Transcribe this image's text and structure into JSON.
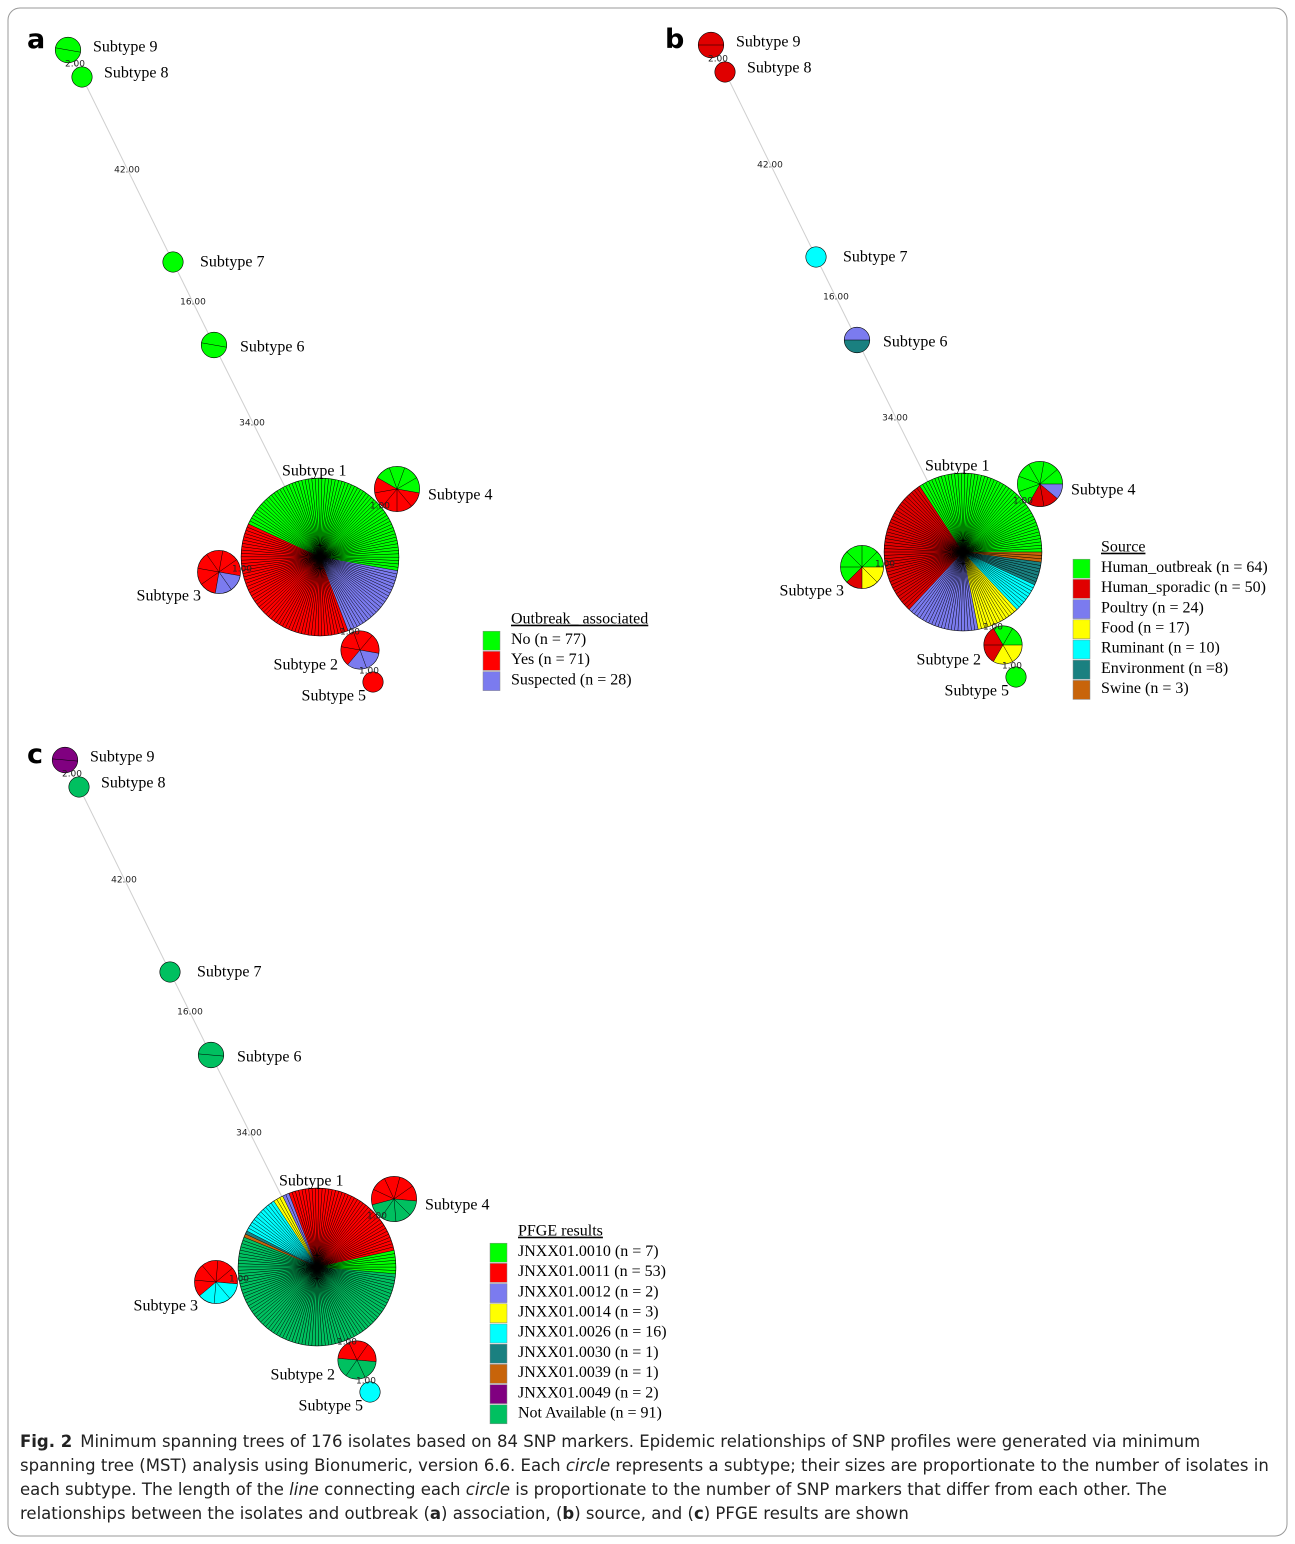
{
  "panels": [
    {
      "label": "a",
      "legend": {
        "title": "Outbreak_ associated",
        "entries": [
          {
            "label": "No (n = 77)",
            "color": "#00ff00"
          },
          {
            "label": "Yes (n = 71)",
            "color": "#ff0000"
          },
          {
            "label": "Suspected (n = 28)",
            "color": "#7b7bef"
          }
        ]
      },
      "nodes": [
        {
          "label": "Subtype 9",
          "composition": [
            2,
            0,
            0
          ]
        },
        {
          "label": "Subtype 8",
          "composition": [
            1,
            0,
            0
          ]
        },
        {
          "label": "Subtype 7",
          "composition": [
            1,
            0,
            0
          ]
        },
        {
          "label": "Subtype 6",
          "composition": [
            2,
            0,
            0
          ]
        },
        {
          "label": "Subtype 1",
          "composition": [
            67,
            55,
            24
          ]
        },
        {
          "label": "Subtype 4",
          "composition": [
            4,
            5,
            0
          ]
        },
        {
          "label": "Subtype 3",
          "composition": [
            0,
            6,
            2
          ]
        },
        {
          "label": "Subtype 2",
          "composition": [
            0,
            4,
            2
          ]
        },
        {
          "label": "Subtype 5",
          "composition": [
            0,
            1,
            0
          ]
        }
      ],
      "edges": [
        {
          "label": "2.00"
        },
        {
          "label": "42.00"
        },
        {
          "label": "16.00"
        },
        {
          "label": "34.00"
        },
        {
          "label": "1.00"
        },
        {
          "label": "1.00"
        },
        {
          "label": "1.00"
        },
        {
          "label": "1.00"
        }
      ]
    },
    {
      "label": "b",
      "legend": {
        "title": "Source",
        "entries": [
          {
            "label": "Human_outbreak (n = 64)",
            "color": "#00ff00"
          },
          {
            "label": "Human_sporadic (n = 50)",
            "color": "#e00000"
          },
          {
            "label": "Poultry (n = 24)",
            "color": "#7b7bef"
          },
          {
            "label": "Food (n = 17)",
            "color": "#ffff00"
          },
          {
            "label": "Ruminant (n = 10)",
            "color": "#00ffff"
          },
          {
            "label": "Environment (n =8)",
            "color": "#1a8080"
          },
          {
            "label": "Swine (n = 3)",
            "color": "#c8640a"
          }
        ]
      },
      "nodes": [
        {
          "label": "Subtype 9",
          "composition": [
            0,
            2,
            0,
            0,
            0,
            0,
            0
          ]
        },
        {
          "label": "Subtype 8",
          "composition": [
            0,
            1,
            0,
            0,
            0,
            0,
            0
          ]
        },
        {
          "label": "Subtype 7",
          "composition": [
            0,
            0,
            0,
            0,
            1,
            0,
            0
          ]
        },
        {
          "label": "Subtype 6",
          "composition": [
            0,
            0,
            1,
            0,
            0,
            1,
            0
          ]
        },
        {
          "label": "Subtype 1",
          "composition": [
            50,
            42,
            22,
            13,
            9,
            7,
            3
          ]
        },
        {
          "label": "Subtype 4",
          "composition": [
            6,
            2,
            1,
            0,
            0,
            0,
            0
          ]
        },
        {
          "label": "Subtype 3",
          "composition": [
            5,
            1,
            0,
            2,
            0,
            0,
            0
          ]
        },
        {
          "label": "Subtype 2",
          "composition": [
            2,
            2,
            0,
            2,
            0,
            0,
            0
          ]
        },
        {
          "label": "Subtype 5",
          "composition": [
            1,
            0,
            0,
            0,
            0,
            0,
            0
          ]
        }
      ],
      "edges": [
        {
          "label": "2.00"
        },
        {
          "label": "42.00"
        },
        {
          "label": "16.00"
        },
        {
          "label": "34.00"
        },
        {
          "label": "1.00"
        },
        {
          "label": "1.00"
        },
        {
          "label": "1.00"
        },
        {
          "label": "1.00"
        }
      ]
    },
    {
      "label": "c",
      "legend": {
        "title": "PFGE results",
        "entries": [
          {
            "label": "JNXX01.0010 (n = 7)",
            "color": "#00ff00"
          },
          {
            "label": "JNXX01.0011 (n = 53)",
            "color": "#ff0000"
          },
          {
            "label": "JNXX01.0012 (n = 2)",
            "color": "#7b7bef"
          },
          {
            "label": "JNXX01.0014 (n = 3)",
            "color": "#ffff00"
          },
          {
            "label": "JNXX01.0026 (n = 16)",
            "color": "#00ffff"
          },
          {
            "label": "JNXX01.0030 (n = 1)",
            "color": "#1a8080"
          },
          {
            "label": "JNXX01.0039 (n = 1)",
            "color": "#c8640a"
          },
          {
            "label": "JNXX01.0049 (n = 2)",
            "color": "#800080"
          },
          {
            "label": "Not Available (n = 91)",
            "color": "#00c060"
          }
        ]
      },
      "nodes": [
        {
          "label": "Subtype 9",
          "composition": [
            0,
            0,
            0,
            0,
            0,
            0,
            0,
            2,
            0
          ]
        },
        {
          "label": "Subtype 8",
          "composition": [
            0,
            0,
            0,
            0,
            0,
            0,
            0,
            0,
            1
          ]
        },
        {
          "label": "Subtype 7",
          "composition": [
            0,
            0,
            0,
            0,
            0,
            0,
            0,
            0,
            1
          ]
        },
        {
          "label": "Subtype 6",
          "composition": [
            0,
            0,
            0,
            0,
            0,
            0,
            0,
            0,
            2
          ]
        },
        {
          "label": "Subtype 1",
          "composition": [
            7,
            40,
            2,
            3,
            12,
            1,
            1,
            0,
            80
          ]
        },
        {
          "label": "Subtype 4",
          "composition": [
            0,
            5,
            0,
            0,
            0,
            0,
            0,
            0,
            4
          ]
        },
        {
          "label": "Subtype 3",
          "composition": [
            0,
            5,
            0,
            0,
            3,
            0,
            0,
            0,
            0
          ]
        },
        {
          "label": "Subtype 2",
          "composition": [
            0,
            3,
            0,
            0,
            0,
            0,
            0,
            0,
            3
          ]
        },
        {
          "label": "Subtype 5",
          "composition": [
            0,
            0,
            0,
            0,
            1,
            0,
            0,
            0,
            0
          ]
        }
      ],
      "edges": [
        {
          "label": "2.00"
        },
        {
          "label": "42.00"
        },
        {
          "label": "16.00"
        },
        {
          "label": "34.00"
        },
        {
          "label": "1.00"
        },
        {
          "label": "1.00"
        },
        {
          "label": "1.00"
        },
        {
          "label": "1.00"
        }
      ]
    }
  ],
  "caption": {
    "parts": [
      "Fig. 2",
      "Minimum spanning trees of 176 isolates based on 84 SNP markers. Epidemic relationships of SNP profiles were generated via minimum spanning tree (MST) analysis using Bionumeric, version 6.6. Each ",
      "circle",
      " represents a subtype; their sizes are proportionate to the number of isolates in each subtype. The length of the ",
      "line",
      " connecting each ",
      "circle",
      " is proportionate to the number of SNP markers that differ from each other. The relationships between the isolates and outbreak (",
      "a",
      ") association, (",
      "b",
      ") source, and (",
      "c",
      ") PFGE results are shown"
    ]
  }
}
